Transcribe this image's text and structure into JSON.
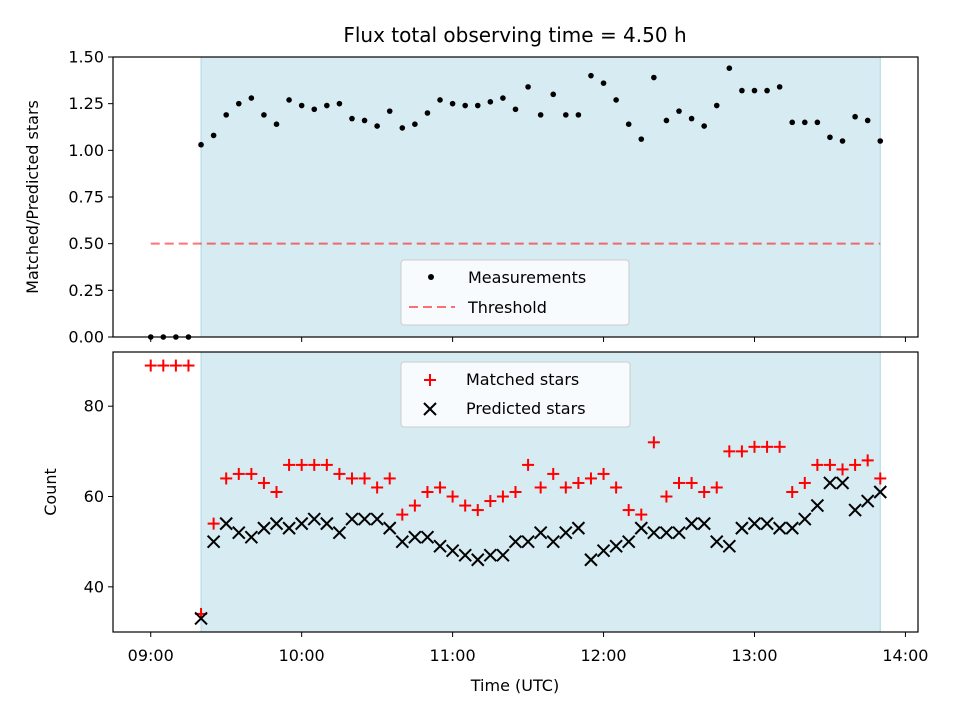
{
  "title": "Flux total observing time = 4.50 h",
  "colors": {
    "shade": "#add8e6",
    "measurements": "#000000",
    "threshold": "#ff0000",
    "matched": "#ff0000",
    "predicted": "#000000"
  },
  "chart_data": [
    {
      "type": "scatter",
      "ylabel": "Matched/Predicted stars",
      "ylim": [
        0,
        1.5
      ],
      "yticks": [
        "0.00",
        "0.25",
        "0.50",
        "0.75",
        "1.00",
        "1.25",
        "1.50"
      ],
      "shaded_interval": [
        "09:20",
        "13:50"
      ],
      "legend": {
        "placement": "lower center",
        "measurements_label": "Measurements",
        "threshold_label": "Threshold"
      },
      "threshold": {
        "value": 0.5,
        "x_range": [
          "09:00",
          "13:50"
        ]
      },
      "x": [
        "09:00",
        "09:05",
        "09:10",
        "09:15",
        "09:20",
        "09:25",
        "09:30",
        "09:35",
        "09:40",
        "09:45",
        "09:50",
        "09:55",
        "10:00",
        "10:05",
        "10:10",
        "10:15",
        "10:20",
        "10:25",
        "10:30",
        "10:35",
        "10:40",
        "10:45",
        "10:50",
        "10:55",
        "11:00",
        "11:05",
        "11:10",
        "11:15",
        "11:20",
        "11:25",
        "11:30",
        "11:35",
        "11:40",
        "11:45",
        "11:50",
        "11:55",
        "12:00",
        "12:05",
        "12:10",
        "12:15",
        "12:20",
        "12:25",
        "12:30",
        "12:35",
        "12:40",
        "12:45",
        "12:50",
        "12:55",
        "13:00",
        "13:05",
        "13:10",
        "13:15",
        "13:20",
        "13:25",
        "13:30",
        "13:35",
        "13:40",
        "13:45",
        "13:50"
      ],
      "values": [
        0,
        0,
        0,
        0,
        1.03,
        1.08,
        1.19,
        1.25,
        1.28,
        1.19,
        1.14,
        1.27,
        1.24,
        1.22,
        1.24,
        1.25,
        1.17,
        1.16,
        1.13,
        1.21,
        1.12,
        1.14,
        1.2,
        1.27,
        1.25,
        1.24,
        1.24,
        1.26,
        1.28,
        1.22,
        1.34,
        1.19,
        1.3,
        1.19,
        1.19,
        1.4,
        1.36,
        1.27,
        1.14,
        1.06,
        1.39,
        1.16,
        1.21,
        1.17,
        1.13,
        1.24,
        1.44,
        1.32,
        1.32,
        1.32,
        1.34,
        1.15,
        1.15,
        1.15,
        1.07,
        1.05,
        1.18,
        1.16,
        1.05
      ]
    },
    {
      "type": "scatter",
      "xlabel": "Time (UTC)",
      "ylabel": "Count",
      "ylim": [
        30,
        92
      ],
      "yticks": [
        "40",
        "60",
        "80"
      ],
      "xticks": [
        "09:00",
        "10:00",
        "11:00",
        "12:00",
        "13:00",
        "14:00"
      ],
      "shaded_interval": [
        "09:20",
        "13:50"
      ],
      "legend": {
        "placement": "upper center",
        "matched_label": "Matched stars",
        "predicted_label": "Predicted stars"
      },
      "x": [
        "09:00",
        "09:05",
        "09:10",
        "09:15",
        "09:20",
        "09:25",
        "09:30",
        "09:35",
        "09:40",
        "09:45",
        "09:50",
        "09:55",
        "10:00",
        "10:05",
        "10:10",
        "10:15",
        "10:20",
        "10:25",
        "10:30",
        "10:35",
        "10:40",
        "10:45",
        "10:50",
        "10:55",
        "11:00",
        "11:05",
        "11:10",
        "11:15",
        "11:20",
        "11:25",
        "11:30",
        "11:35",
        "11:40",
        "11:45",
        "11:50",
        "11:55",
        "12:00",
        "12:05",
        "12:10",
        "12:15",
        "12:20",
        "12:25",
        "12:30",
        "12:35",
        "12:40",
        "12:45",
        "12:50",
        "12:55",
        "13:00",
        "13:05",
        "13:10",
        "13:15",
        "13:20",
        "13:25",
        "13:30",
        "13:35",
        "13:40",
        "13:45",
        "13:50"
      ],
      "series": [
        {
          "name": "Matched stars",
          "marker": "plus",
          "values": [
            89,
            89,
            89,
            89,
            34,
            54,
            64,
            65,
            65,
            63,
            61,
            67,
            67,
            67,
            67,
            65,
            64,
            64,
            62,
            64,
            56,
            58,
            61,
            62,
            60,
            58,
            57,
            59,
            60,
            61,
            67,
            62,
            65,
            62,
            63,
            64,
            65,
            62,
            57,
            56,
            72,
            60,
            63,
            63,
            61,
            62,
            70,
            70,
            71,
            71,
            71,
            61,
            63,
            67,
            67,
            66,
            67,
            68,
            64
          ]
        },
        {
          "name": "Predicted stars",
          "marker": "x",
          "values": [
            null,
            null,
            null,
            null,
            33,
            50,
            54,
            52,
            51,
            53,
            54,
            53,
            54,
            55,
            54,
            52,
            55,
            55,
            55,
            53,
            50,
            51,
            51,
            49,
            48,
            47,
            46,
            47,
            47,
            50,
            50,
            52,
            50,
            52,
            53,
            46,
            48,
            49,
            50,
            53,
            52,
            52,
            52,
            54,
            54,
            50,
            49,
            53,
            54,
            54,
            53,
            53,
            55,
            58,
            63,
            63,
            57,
            59,
            61
          ]
        }
      ]
    }
  ]
}
